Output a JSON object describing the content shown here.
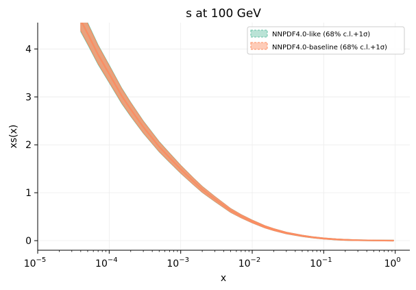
{
  "chart_data": {
    "type": "line",
    "title": "s at 100 GeV",
    "xlabel": "x",
    "ylabel": "xs(x)",
    "xscale": "log",
    "xlim": [
      1e-05,
      1.6
    ],
    "ylim": [
      -0.2,
      4.55
    ],
    "grid": "on (faint)",
    "legend_position": "top-right",
    "xticks": [
      {
        "value": 1e-05,
        "label": "10",
        "exp": "−5"
      },
      {
        "value": 0.0001,
        "label": "10",
        "exp": "−4"
      },
      {
        "value": 0.001,
        "label": "10",
        "exp": "−3"
      },
      {
        "value": 0.01,
        "label": "10",
        "exp": "−2"
      },
      {
        "value": 0.1,
        "label": "10",
        "exp": "−1"
      },
      {
        "value": 1,
        "label": "10",
        "exp": "0"
      }
    ],
    "yticks": [
      {
        "value": 0,
        "label": "0"
      },
      {
        "value": 1,
        "label": "1"
      },
      {
        "value": 2,
        "label": "2"
      },
      {
        "value": 3,
        "label": "3"
      },
      {
        "value": 4,
        "label": "4"
      }
    ],
    "series": [
      {
        "name": "NNPDF4.0-like (68% c.l.+1σ)",
        "color": "#66c2a5",
        "x": [
          4e-05,
          5e-05,
          7e-05,
          0.0001,
          0.00015,
          0.0002,
          0.0003,
          0.0005,
          0.0007,
          0.001,
          0.0015,
          0.002,
          0.003,
          0.005,
          0.007,
          0.01,
          0.015,
          0.02,
          0.03,
          0.05,
          0.07,
          0.1,
          0.15,
          0.2,
          0.3,
          0.5,
          0.7,
          0.95
        ],
        "y": [
          4.6,
          4.32,
          3.88,
          3.48,
          3.02,
          2.74,
          2.37,
          1.96,
          1.73,
          1.49,
          1.24,
          1.07,
          0.87,
          0.63,
          0.51,
          0.4,
          0.29,
          0.23,
          0.16,
          0.1,
          0.07,
          0.045,
          0.026,
          0.017,
          0.008,
          0.003,
          0.001,
          0.0
        ]
      },
      {
        "name": "NNPDF4.0-baseline (68% c.l.+1σ)",
        "color": "#fc8d62",
        "x": [
          4e-05,
          5e-05,
          7e-05,
          0.0001,
          0.00015,
          0.0002,
          0.0003,
          0.0005,
          0.0007,
          0.001,
          0.0015,
          0.002,
          0.003,
          0.005,
          0.007,
          0.01,
          0.015,
          0.02,
          0.03,
          0.05,
          0.07,
          0.1,
          0.15,
          0.2,
          0.3,
          0.5,
          0.7,
          0.95
        ],
        "y": [
          4.6,
          4.32,
          3.88,
          3.48,
          3.02,
          2.74,
          2.37,
          1.96,
          1.73,
          1.49,
          1.24,
          1.07,
          0.87,
          0.63,
          0.51,
          0.4,
          0.29,
          0.23,
          0.16,
          0.1,
          0.07,
          0.045,
          0.026,
          0.017,
          0.008,
          0.003,
          0.001,
          0.0
        ]
      }
    ]
  }
}
